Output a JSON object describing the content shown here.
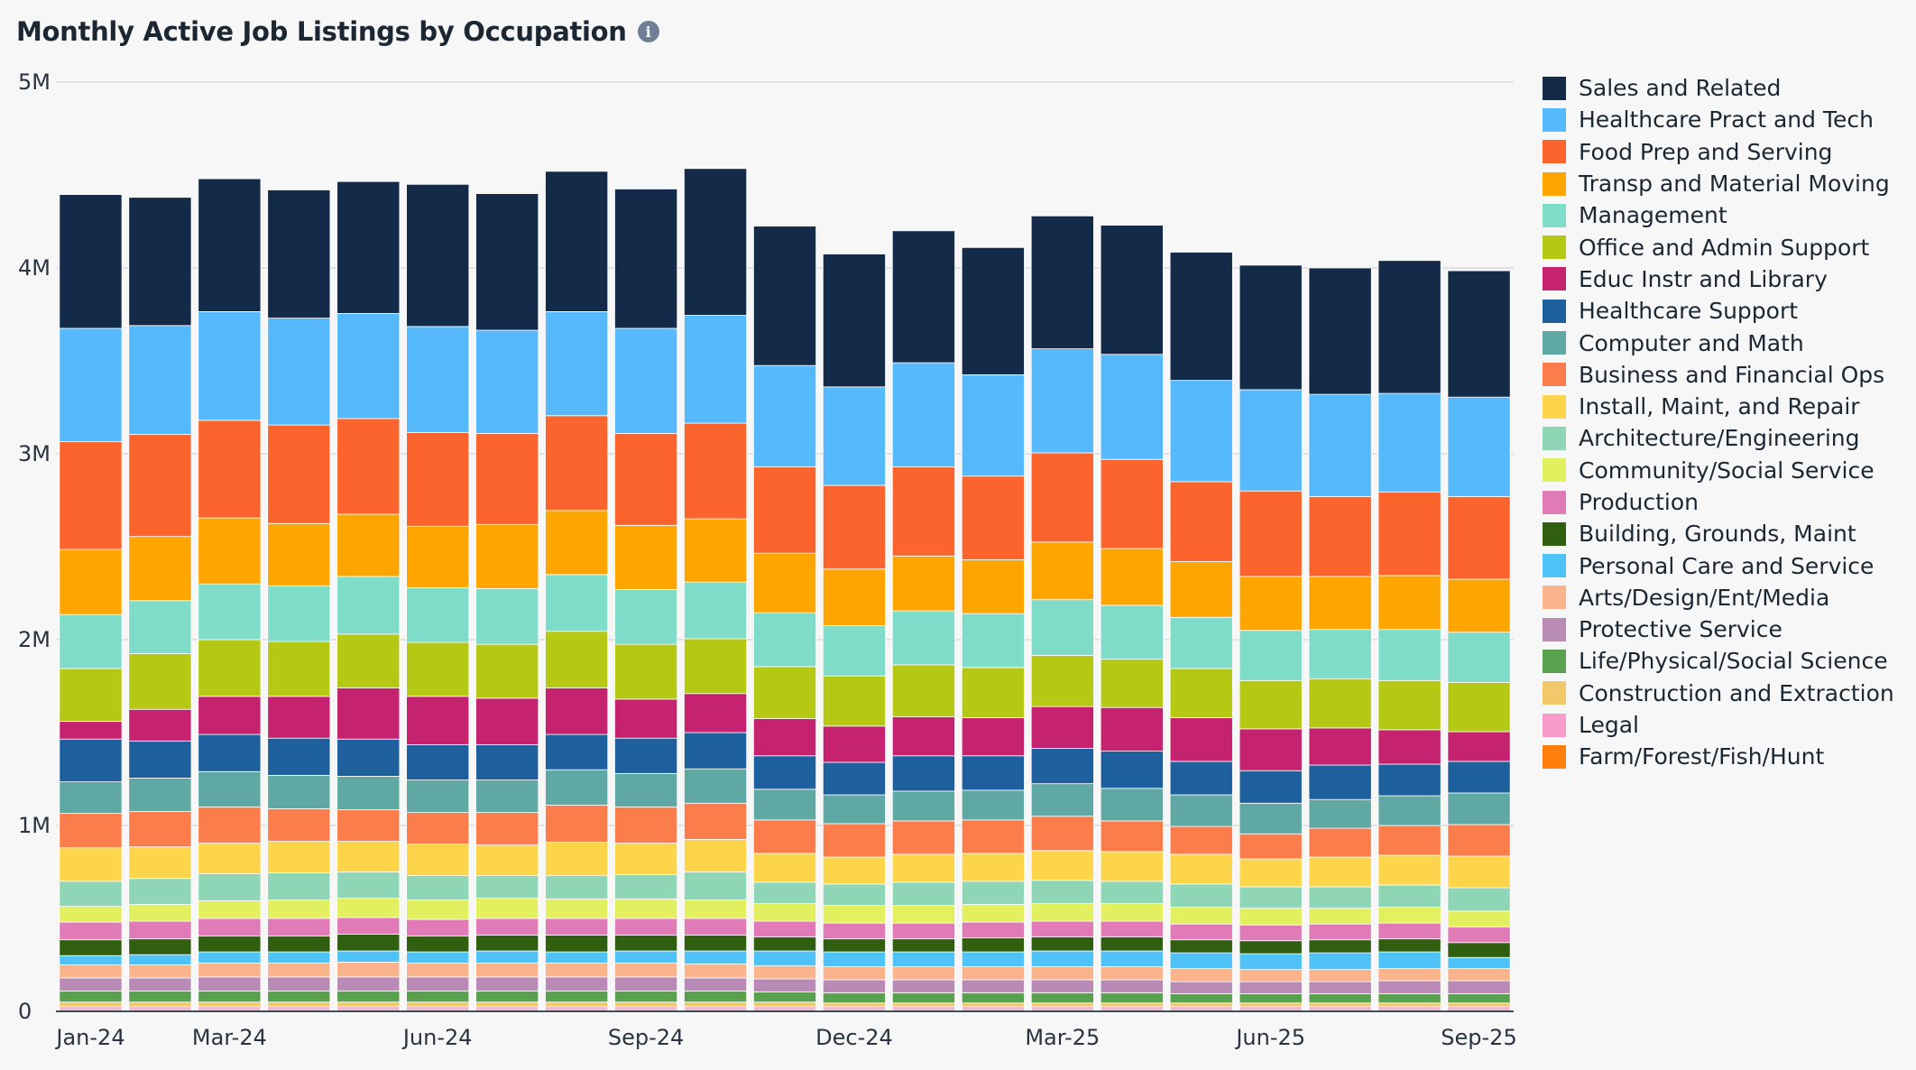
{
  "chart_data": {
    "type": "bar",
    "stacked": true,
    "title": "Monthly Active Job Listings by Occupation",
    "info_icon": "info-icon",
    "xlabel": "",
    "ylabel": "",
    "ylim": [
      0,
      5000000
    ],
    "y_ticks": [
      {
        "value": 0,
        "label": "0"
      },
      {
        "value": 1000000,
        "label": "1M"
      },
      {
        "value": 2000000,
        "label": "2M"
      },
      {
        "value": 3000000,
        "label": "3M"
      },
      {
        "value": 4000000,
        "label": "4M"
      },
      {
        "value": 5000000,
        "label": "5M"
      }
    ],
    "grid": true,
    "legend_position": "right",
    "categories": [
      "Jan-24",
      "Feb-24",
      "Mar-24",
      "Apr-24",
      "May-24",
      "Jun-24",
      "Jul-24",
      "Aug-24",
      "Sep-24",
      "Oct-24",
      "Nov-24",
      "Dec-24",
      "Jan-25",
      "Feb-25",
      "Mar-25",
      "Apr-25",
      "May-25",
      "Jun-25",
      "Jul-25",
      "Aug-25",
      "Sep-25"
    ],
    "x_tick_labels": [
      "Jan-24",
      "Mar-24",
      "Jun-24",
      "Sep-24",
      "Dec-24",
      "Mar-25",
      "Jun-25",
      "Sep-25"
    ],
    "series": [
      {
        "name": "Farm/Forest/Fish/Hunt",
        "color": "#ff7f0e",
        "values": [
          10000,
          10000,
          10000,
          10000,
          10000,
          10000,
          10000,
          10000,
          10000,
          10000,
          10000,
          10000,
          10000,
          10000,
          10000,
          10000,
          10000,
          10000,
          10000,
          10000,
          10000
        ]
      },
      {
        "name": "Legal",
        "color": "#f99cc9",
        "values": [
          15000,
          15000,
          15000,
          15000,
          15000,
          15000,
          15000,
          15000,
          15000,
          15000,
          15000,
          15000,
          15000,
          15000,
          15000,
          15000,
          15000,
          15000,
          15000,
          15000,
          15000
        ]
      },
      {
        "name": "Construction and Extraction",
        "color": "#f2c86b",
        "values": [
          25000,
          25000,
          25000,
          25000,
          25000,
          25000,
          25000,
          25000,
          25000,
          25000,
          25000,
          20000,
          20000,
          20000,
          20000,
          20000,
          20000,
          20000,
          20000,
          20000,
          20000
        ]
      },
      {
        "name": "Life/Physical/Social Science",
        "color": "#59a14f",
        "values": [
          60000,
          60000,
          60000,
          60000,
          60000,
          60000,
          60000,
          60000,
          60000,
          60000,
          55000,
          55000,
          55000,
          55000,
          55000,
          55000,
          50000,
          50000,
          50000,
          50000,
          50000
        ]
      },
      {
        "name": "Protective Service",
        "color": "#b98ab5",
        "values": [
          70000,
          70000,
          75000,
          75000,
          75000,
          75000,
          75000,
          75000,
          75000,
          70000,
          70000,
          70000,
          70000,
          70000,
          70000,
          70000,
          65000,
          65000,
          65000,
          70000,
          70000
        ]
      },
      {
        "name": "Arts/Design/Ent/Media",
        "color": "#fbb38b",
        "values": [
          70000,
          70000,
          75000,
          75000,
          80000,
          75000,
          75000,
          75000,
          75000,
          75000,
          70000,
          70000,
          70000,
          70000,
          70000,
          70000,
          70000,
          65000,
          65000,
          65000,
          65000
        ]
      },
      {
        "name": "Personal Care and Service",
        "color": "#4fc3f7",
        "values": [
          50000,
          55000,
          60000,
          60000,
          60000,
          60000,
          65000,
          60000,
          65000,
          70000,
          80000,
          80000,
          80000,
          80000,
          85000,
          85000,
          85000,
          85000,
          90000,
          90000,
          60000
        ]
      },
      {
        "name": "Building, Grounds, Maint",
        "color": "#2f5f0f",
        "values": [
          85000,
          85000,
          85000,
          85000,
          90000,
          85000,
          85000,
          90000,
          85000,
          85000,
          75000,
          70000,
          70000,
          75000,
          75000,
          75000,
          70000,
          70000,
          70000,
          70000,
          80000
        ]
      },
      {
        "name": "Production",
        "color": "#e07bb8",
        "values": [
          95000,
          95000,
          95000,
          95000,
          90000,
          90000,
          90000,
          90000,
          90000,
          90000,
          85000,
          85000,
          85000,
          85000,
          85000,
          85000,
          85000,
          85000,
          85000,
          85000,
          85000
        ]
      },
      {
        "name": "Community/Social Service",
        "color": "#e2ef5e",
        "values": [
          85000,
          90000,
          95000,
          100000,
          105000,
          105000,
          110000,
          105000,
          105000,
          100000,
          95000,
          95000,
          95000,
          95000,
          95000,
          95000,
          90000,
          90000,
          85000,
          85000,
          85000
        ]
      },
      {
        "name": "Architecture/Engineering",
        "color": "#8ed6b6",
        "values": [
          135000,
          140000,
          145000,
          145000,
          140000,
          130000,
          120000,
          125000,
          130000,
          150000,
          115000,
          115000,
          125000,
          125000,
          125000,
          120000,
          125000,
          115000,
          115000,
          120000,
          125000
        ]
      },
      {
        "name": "Install, Maint, and Repair",
        "color": "#fcd54a",
        "values": [
          180000,
          170000,
          165000,
          170000,
          165000,
          170000,
          165000,
          180000,
          170000,
          175000,
          155000,
          145000,
          150000,
          150000,
          160000,
          160000,
          160000,
          150000,
          160000,
          160000,
          170000
        ]
      },
      {
        "name": "Business and Financial Ops",
        "color": "#fa7d4b",
        "values": [
          185000,
          190000,
          195000,
          175000,
          170000,
          170000,
          175000,
          200000,
          195000,
          195000,
          180000,
          180000,
          180000,
          180000,
          185000,
          165000,
          150000,
          135000,
          155000,
          160000,
          170000
        ]
      },
      {
        "name": "Computer and Math",
        "color": "#5fa8a3",
        "values": [
          170000,
          180000,
          190000,
          180000,
          180000,
          175000,
          175000,
          190000,
          180000,
          185000,
          165000,
          155000,
          160000,
          160000,
          175000,
          175000,
          170000,
          165000,
          155000,
          160000,
          170000
        ]
      },
      {
        "name": "Healthcare Support",
        "color": "#1e5f9e",
        "values": [
          230000,
          200000,
          200000,
          200000,
          200000,
          190000,
          190000,
          190000,
          190000,
          195000,
          180000,
          175000,
          190000,
          185000,
          190000,
          200000,
          180000,
          175000,
          185000,
          170000,
          170000
        ]
      },
      {
        "name": "Educ Instr and Library",
        "color": "#c5226f",
        "values": [
          95000,
          170000,
          205000,
          225000,
          275000,
          260000,
          250000,
          250000,
          210000,
          210000,
          200000,
          195000,
          210000,
          205000,
          225000,
          235000,
          235000,
          225000,
          200000,
          185000,
          160000
        ]
      },
      {
        "name": "Office and Admin Support",
        "color": "#b5c914",
        "values": [
          285000,
          300000,
          305000,
          295000,
          290000,
          290000,
          290000,
          305000,
          295000,
          295000,
          280000,
          270000,
          280000,
          270000,
          275000,
          260000,
          265000,
          260000,
          265000,
          265000,
          265000
        ]
      },
      {
        "name": "Management",
        "color": "#7fdcc9",
        "values": [
          290000,
          285000,
          300000,
          300000,
          310000,
          295000,
          300000,
          305000,
          295000,
          305000,
          290000,
          270000,
          290000,
          290000,
          300000,
          290000,
          275000,
          270000,
          265000,
          275000,
          270000
        ]
      },
      {
        "name": "Transp and Material Moving",
        "color": "#ffa500",
        "values": [
          350000,
          345000,
          355000,
          335000,
          335000,
          330000,
          345000,
          345000,
          345000,
          340000,
          320000,
          305000,
          295000,
          290000,
          310000,
          305000,
          300000,
          290000,
          285000,
          290000,
          285000
        ]
      },
      {
        "name": "Food Prep and Serving",
        "color": "#fb652d",
        "values": [
          580000,
          550000,
          525000,
          530000,
          515000,
          505000,
          490000,
          510000,
          495000,
          515000,
          465000,
          450000,
          480000,
          450000,
          480000,
          480000,
          430000,
          460000,
          430000,
          450000,
          445000
        ]
      },
      {
        "name": "Healthcare Pract and Tech",
        "color": "#56b9fb",
        "values": [
          610000,
          585000,
          585000,
          575000,
          565000,
          570000,
          555000,
          560000,
          565000,
          580000,
          545000,
          530000,
          560000,
          545000,
          560000,
          565000,
          545000,
          545000,
          550000,
          530000,
          535000
        ]
      },
      {
        "name": "Sales and Related",
        "color": "#132a49",
        "values": [
          720000,
          690000,
          715000,
          690000,
          710000,
          765000,
          735000,
          755000,
          750000,
          790000,
          750000,
          715000,
          710000,
          685000,
          715000,
          695000,
          690000,
          670000,
          680000,
          715000,
          680000
        ]
      }
    ]
  }
}
